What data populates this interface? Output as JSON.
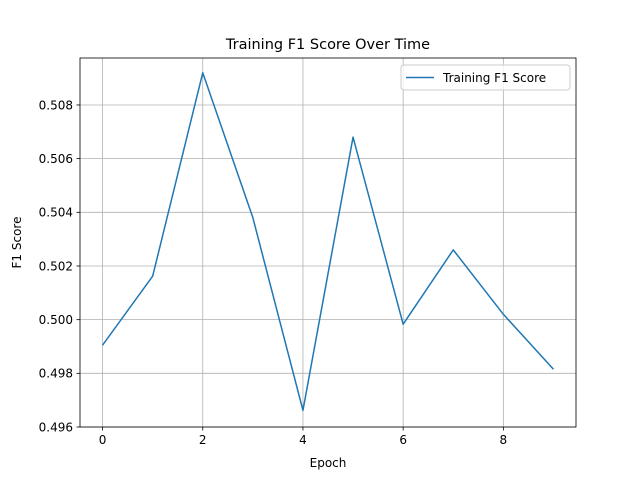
{
  "chart_data": {
    "type": "line",
    "title": "Training F1 Score Over Time",
    "xlabel": "Epoch",
    "ylabel": "F1 Score",
    "x": [
      0,
      1,
      2,
      3,
      4,
      5,
      6,
      7,
      8,
      9
    ],
    "series": [
      {
        "name": "Training F1 Score",
        "color": "#1f77b4",
        "values": [
          0.49905,
          0.50162,
          0.5092,
          0.5038,
          0.49662,
          0.5068,
          0.49983,
          0.5026,
          0.5002,
          0.49815
        ]
      }
    ],
    "xlim": [
      -0.45,
      9.45
    ],
    "ylim": [
      0.496,
      0.50975
    ],
    "xticks": [
      0,
      2,
      4,
      6,
      8
    ],
    "xtick_labels": [
      "0",
      "2",
      "4",
      "6",
      "8"
    ],
    "yticks": [
      0.496,
      0.498,
      0.5,
      0.502,
      0.504,
      0.506,
      0.508
    ],
    "ytick_labels": [
      "0.496",
      "0.498",
      "0.500",
      "0.502",
      "0.504",
      "0.506",
      "0.508"
    ],
    "grid": true,
    "legend_position": "top-right"
  }
}
